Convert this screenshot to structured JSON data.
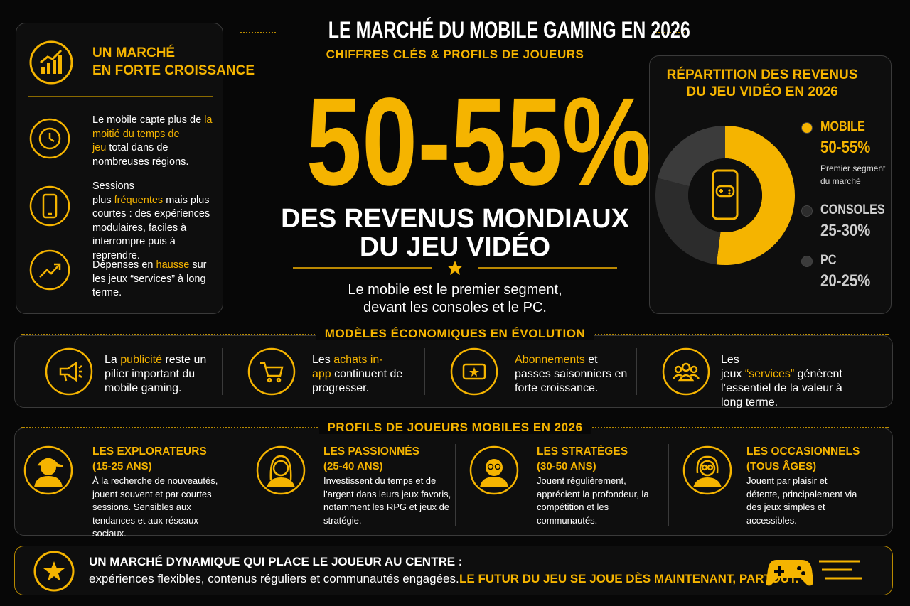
{
  "header": {
    "title": "LE MARCHÉ DU MOBILE GAMING EN 2026",
    "subtitle": "CHIFFRES CLÉS & PROFILS DE JOUEURS"
  },
  "growth_panel": {
    "title_lines": [
      "UN MARCHÉ",
      "EN FORTE CROISSANCE"
    ],
    "items": [
      {
        "parts": [
          {
            "text": "Le mobile capte plus de"
          },
          {
            "text": "la moitié du temps de jeu",
            "highlight": true
          },
          {
            "text": "total dans de nombreuses régions."
          }
        ]
      },
      {
        "parts": [
          {
            "text": "Sessions plus"
          },
          {
            "text": "fréquentes",
            "highlight": true
          },
          {
            "text": "mais plus courtes : des expériences modulaires, faciles à interrompre puis à reprendre."
          }
        ]
      },
      {
        "parts": [
          {
            "text": "Dépenses en"
          },
          {
            "text": "hausse",
            "highlight": true
          },
          {
            "text": "sur les jeux “services” à long terme."
          }
        ]
      }
    ]
  },
  "hero": {
    "figure": "50-55%",
    "headline_lines": [
      "DES REVENUS MONDIAUX",
      "DU JEU VIDÉO"
    ],
    "note_lines": [
      "Le mobile est le premier segment,",
      "devant les consoles et le PC."
    ]
  },
  "revenue_split": {
    "title_lines": [
      "RÉPARTITION DES REVENUS",
      "DU JEU VIDÉO EN 2026"
    ],
    "segments": [
      {
        "name": "MOBILE",
        "label": "50-55%",
        "note_lines": [
          "Premier segment",
          "du marché"
        ],
        "share": 52,
        "color": "#f5b400"
      },
      {
        "name": "CONSOLES",
        "label": "25-30%",
        "share": 27,
        "color": "#2c2c2c"
      },
      {
        "name": "PC",
        "label": "20-25%",
        "share": 21,
        "color": "#3b3b3b"
      }
    ]
  },
  "business_models": {
    "title": "MODÈLES ÉCONOMIQUES EN ÉVOLUTION",
    "items": [
      {
        "parts": [
          {
            "text": "La"
          },
          {
            "text": "publicité",
            "highlight": true
          },
          {
            "text": "reste un pilier important du mobile gaming."
          }
        ]
      },
      {
        "parts": [
          {
            "text": "Les"
          },
          {
            "text": "achats in-app",
            "highlight": true
          },
          {
            "text": "continuent de progresser."
          }
        ]
      },
      {
        "parts": [
          {
            "text": "Abonnements",
            "highlight": true
          },
          {
            "text": "et passes saisonniers en forte croissance."
          }
        ]
      },
      {
        "parts": [
          {
            "text": "Les jeux"
          },
          {
            "text": "“services”",
            "highlight": true
          },
          {
            "text": "génèrent l’essentiel de la valeur à long terme."
          }
        ]
      }
    ]
  },
  "profiles": {
    "title": "PROFILS DE JOUEURS MOBILES EN 2026",
    "items": [
      {
        "name": "LES EXPLORATEURS",
        "age": "(15-25 ANS)",
        "description": "À la recherche de nouveautés, jouent souvent et par courtes sessions. Sensibles aux tendances et aux réseaux sociaux."
      },
      {
        "name": "LES PASSIONNÉS",
        "age": "(25-40 ANS)",
        "description": "Investissent du temps et de l’argent dans leurs jeux favoris, notamment les RPG et jeux de stratégie."
      },
      {
        "name": "LES STRATÈGES",
        "age": "(30-50 ANS)",
        "description": "Jouent régulièrement, apprécient la profondeur, la compétition et les communautés."
      },
      {
        "name": "LES OCCASIONNELS",
        "age": "(TOUS ÂGES)",
        "description": "Jouent par plaisir et détente, principalement via des jeux simples et accessibles."
      }
    ]
  },
  "footer": {
    "headline": "UN MARCHÉ DYNAMIQUE QUI PLACE LE JOUEUR AU CENTRE :",
    "text": "expériences flexibles, contenus réguliers et communautés engagées.",
    "tagline": "LE FUTUR DU JEU SE JOUE DÈS MAINTENANT, PARTOUT."
  }
}
